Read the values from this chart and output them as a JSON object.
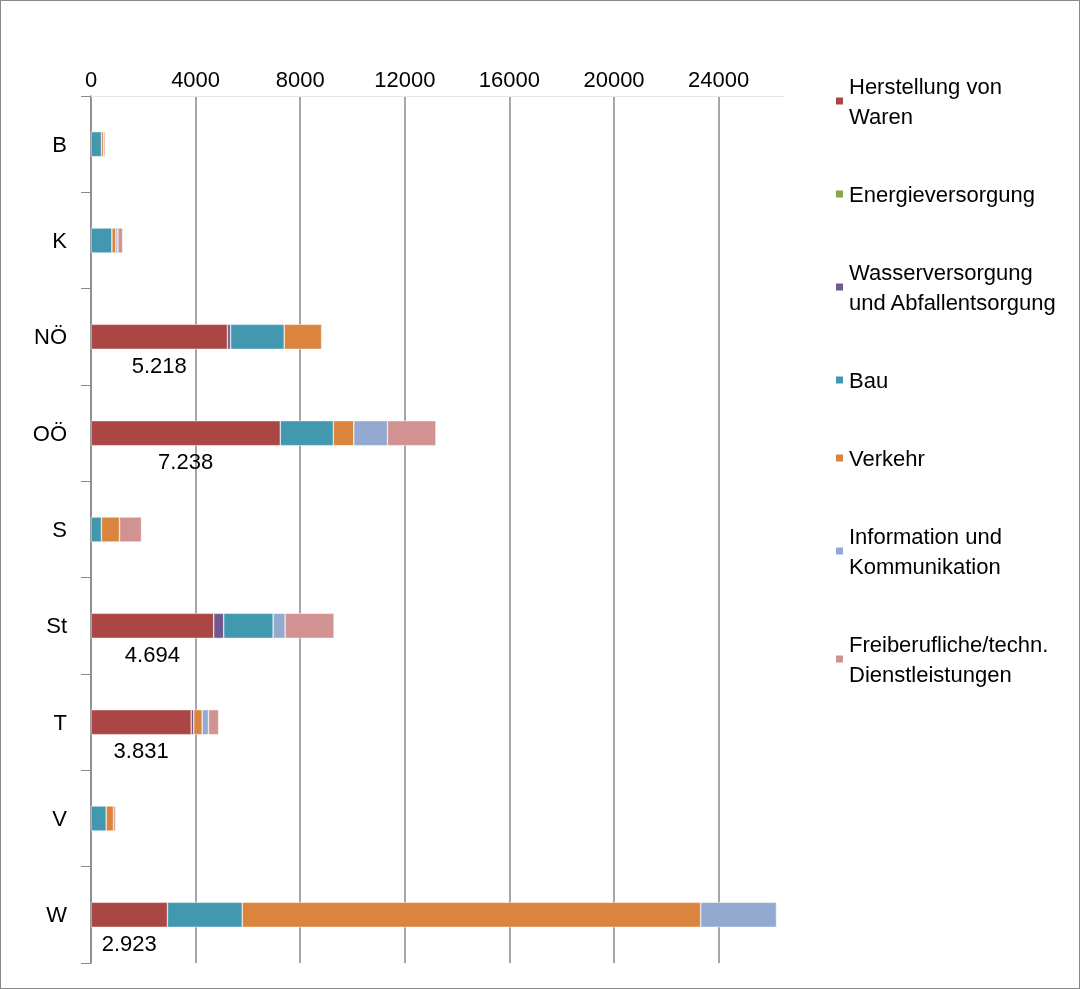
{
  "chart_data": {
    "type": "bar",
    "orientation": "horizontal",
    "stacked": true,
    "categories": [
      "B",
      "K",
      "NÖ",
      "OÖ",
      "S",
      "St",
      "T",
      "V",
      "W"
    ],
    "series": [
      {
        "name": "Herstellung von Waren",
        "color": "#aa4643",
        "values": [
          null,
          null,
          5218,
          7238,
          null,
          4694,
          3831,
          null,
          2923
        ],
        "value_labels": [
          null,
          null,
          "5.218",
          "7.238",
          null,
          "4.694",
          "3.831",
          null,
          "2.923"
        ]
      },
      {
        "name": "Energieversorgung",
        "color": "#89a54e",
        "values": [
          null,
          null,
          null,
          null,
          null,
          null,
          null,
          null,
          null
        ]
      },
      {
        "name": "Wasserversorgung und Abfallentsorgung",
        "color": "#71588f",
        "values": [
          null,
          null,
          120,
          null,
          null,
          380,
          100,
          null,
          null
        ]
      },
      {
        "name": "Bau",
        "color": "#4198af",
        "values": [
          400,
          800,
          2050,
          2030,
          400,
          1890,
          null,
          580,
          2860
        ]
      },
      {
        "name": "Verkehr",
        "color": "#db843d",
        "values": [
          80,
          150,
          1430,
          780,
          690,
          null,
          320,
          280,
          17530
        ]
      },
      {
        "name": "Information und Kommunikation",
        "color": "#93a9cf",
        "values": [
          null,
          80,
          null,
          1290,
          null,
          460,
          240,
          null,
          2900
        ]
      },
      {
        "name": "Freiberufliche/techn. Dienstleistungen",
        "color": "#d19392",
        "values": [
          60,
          180,
          null,
          1850,
          840,
          1870,
          390,
          80,
          null
        ]
      }
    ],
    "xlim": [
      0,
      26500
    ],
    "xticks": [
      0,
      4000,
      8000,
      12000,
      16000,
      20000,
      24000
    ],
    "grid": "x",
    "legend": "right"
  }
}
